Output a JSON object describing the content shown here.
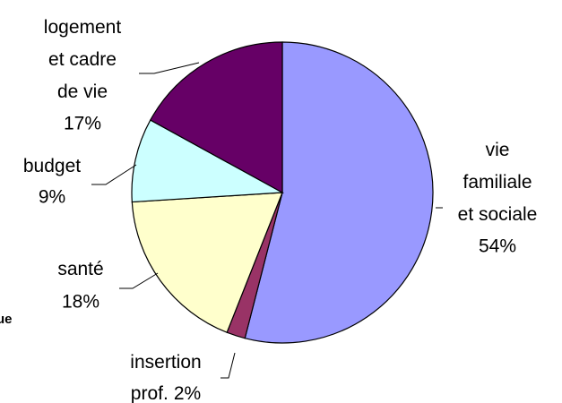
{
  "chart_data": {
    "type": "pie",
    "categories": [
      [
        "vie",
        "familiale",
        "et sociale"
      ],
      [
        "insertion",
        "prof."
      ],
      [
        "santé"
      ],
      [
        "budget"
      ],
      [
        "logement",
        "et cadre",
        "de vie"
      ]
    ],
    "values": [
      54,
      2,
      18,
      9,
      17
    ],
    "value_labels": [
      "54%",
      "2%",
      "18%",
      "9%",
      "17%"
    ],
    "colors": [
      "#9999ff",
      "#993366",
      "#ffffcc",
      "#ccffff",
      "#660066"
    ],
    "annotation": "ue"
  }
}
